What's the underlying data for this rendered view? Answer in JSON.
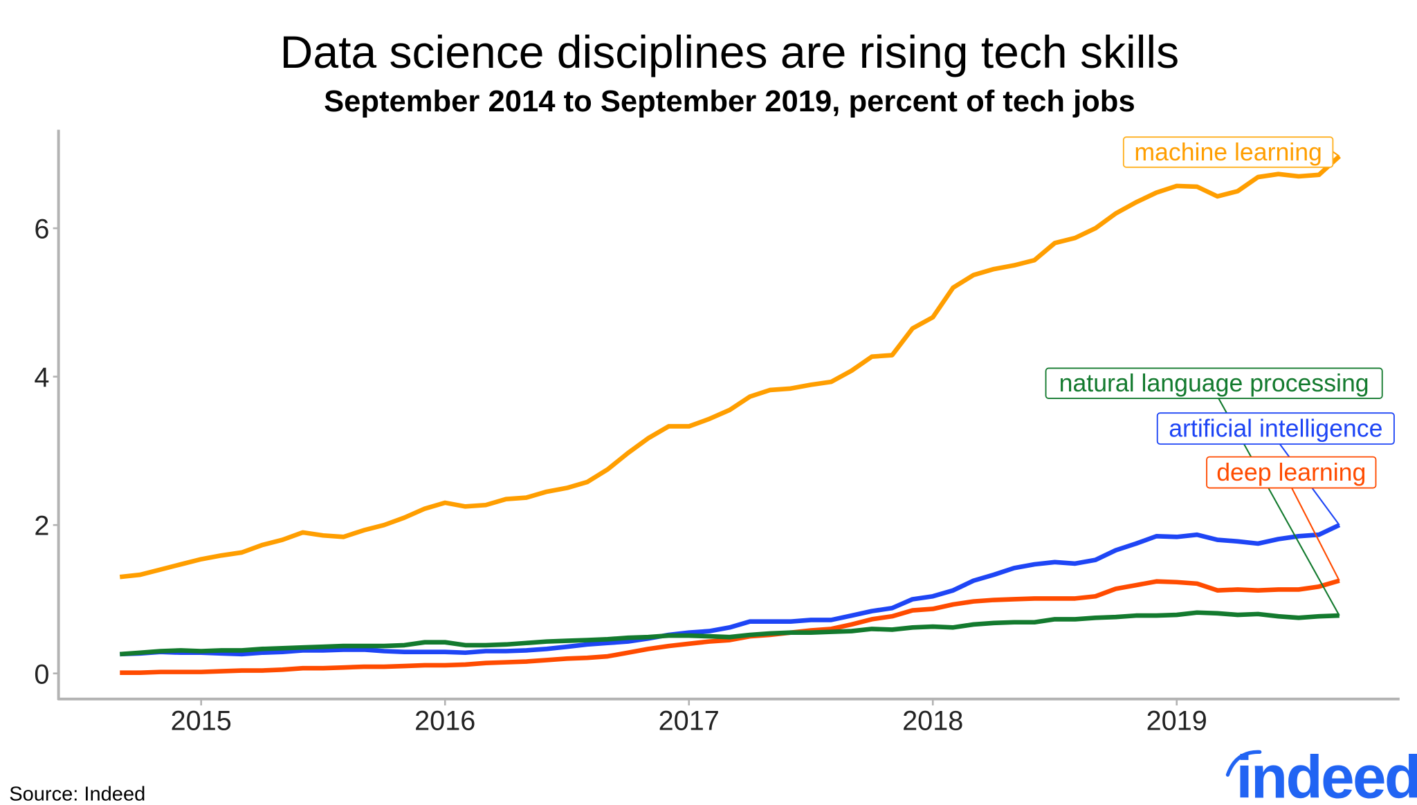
{
  "chart_data": {
    "type": "line",
    "title": "Data science disciplines are rising tech skills",
    "subtitle": "September 2014 to September 2019, percent of tech jobs",
    "xlabel": "",
    "ylabel": "",
    "x_start": "2014-09",
    "x_end": "2019-09",
    "x_frequency": "monthly",
    "x_ticks": [
      "2015",
      "2016",
      "2017",
      "2018",
      "2019"
    ],
    "y_ticks": [
      0,
      2,
      4,
      6
    ],
    "ylim": [
      -0.3,
      7.3
    ],
    "grid": false,
    "legend": "direct labels at line ends",
    "series": [
      {
        "name": "machine learning",
        "color": "#ff9e00",
        "label_border": "#ffb020",
        "values": [
          1.3,
          1.33,
          1.4,
          1.47,
          1.54,
          1.59,
          1.63,
          1.73,
          1.8,
          1.9,
          1.86,
          1.84,
          1.93,
          2.0,
          2.1,
          2.22,
          2.3,
          2.25,
          2.27,
          2.35,
          2.37,
          2.45,
          2.5,
          2.58,
          2.75,
          2.97,
          3.17,
          3.33,
          3.33,
          3.43,
          3.55,
          3.73,
          3.82,
          3.84,
          3.89,
          3.93,
          4.08,
          4.27,
          4.29,
          4.65,
          4.8,
          5.2,
          5.37,
          5.45,
          5.5,
          5.57,
          5.8,
          5.87,
          6.0,
          6.2,
          6.35,
          6.48,
          6.57,
          6.56,
          6.43,
          6.5,
          6.69,
          6.73,
          6.7,
          6.72,
          6.97
        ]
      },
      {
        "name": "natural language processing",
        "color": "#137a2e",
        "label_border": "#137a2e",
        "values": [
          0.26,
          0.28,
          0.3,
          0.31,
          0.3,
          0.31,
          0.31,
          0.33,
          0.34,
          0.35,
          0.36,
          0.37,
          0.37,
          0.37,
          0.38,
          0.42,
          0.42,
          0.38,
          0.38,
          0.39,
          0.41,
          0.43,
          0.44,
          0.45,
          0.46,
          0.48,
          0.49,
          0.51,
          0.51,
          0.5,
          0.49,
          0.52,
          0.54,
          0.55,
          0.55,
          0.56,
          0.57,
          0.6,
          0.59,
          0.62,
          0.63,
          0.62,
          0.66,
          0.68,
          0.69,
          0.69,
          0.73,
          0.73,
          0.75,
          0.76,
          0.78,
          0.78,
          0.79,
          0.82,
          0.81,
          0.79,
          0.8,
          0.77,
          0.75,
          0.77,
          0.78
        ]
      },
      {
        "name": "artificial intelligence",
        "color": "#1e45f5",
        "label_border": "#1e45f5",
        "values": [
          0.26,
          0.27,
          0.29,
          0.28,
          0.28,
          0.27,
          0.26,
          0.28,
          0.29,
          0.31,
          0.31,
          0.32,
          0.32,
          0.3,
          0.29,
          0.29,
          0.29,
          0.28,
          0.3,
          0.3,
          0.31,
          0.33,
          0.36,
          0.39,
          0.41,
          0.43,
          0.47,
          0.52,
          0.55,
          0.57,
          0.62,
          0.7,
          0.7,
          0.7,
          0.72,
          0.72,
          0.78,
          0.84,
          0.88,
          1.0,
          1.04,
          1.12,
          1.25,
          1.33,
          1.42,
          1.47,
          1.5,
          1.48,
          1.53,
          1.66,
          1.75,
          1.85,
          1.84,
          1.87,
          1.8,
          1.78,
          1.75,
          1.81,
          1.85,
          1.87,
          2.0
        ]
      },
      {
        "name": "deep learning",
        "color": "#ff4b00",
        "label_border": "#ff4b00",
        "values": [
          0.01,
          0.01,
          0.02,
          0.02,
          0.02,
          0.03,
          0.04,
          0.04,
          0.05,
          0.07,
          0.07,
          0.08,
          0.09,
          0.09,
          0.1,
          0.11,
          0.11,
          0.12,
          0.14,
          0.15,
          0.16,
          0.18,
          0.2,
          0.21,
          0.23,
          0.28,
          0.33,
          0.37,
          0.4,
          0.43,
          0.45,
          0.5,
          0.52,
          0.55,
          0.58,
          0.6,
          0.66,
          0.73,
          0.77,
          0.85,
          0.87,
          0.93,
          0.97,
          0.99,
          1.0,
          1.01,
          1.01,
          1.01,
          1.04,
          1.14,
          1.19,
          1.24,
          1.23,
          1.21,
          1.12,
          1.13,
          1.12,
          1.13,
          1.13,
          1.17,
          1.25
        ]
      }
    ]
  },
  "source": "Source: Indeed",
  "logo": {
    "text": "indeed",
    "color": "#2164f3"
  }
}
